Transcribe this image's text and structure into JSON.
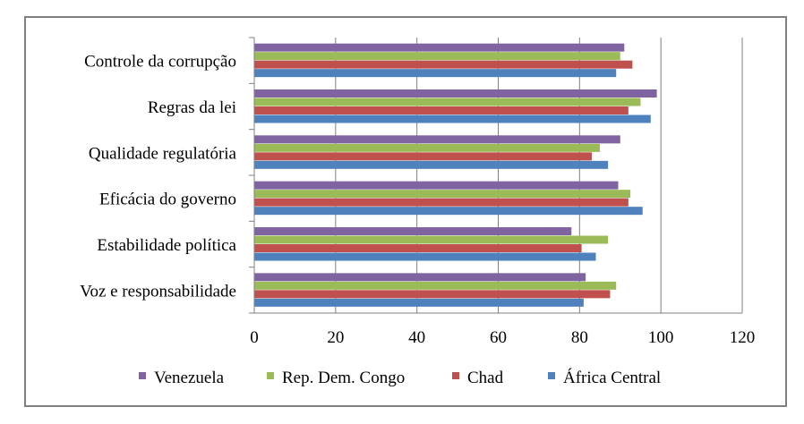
{
  "chart_data": {
    "type": "bar",
    "orientation": "horizontal",
    "categories": [
      "Voz e responsabilidade",
      "Estabilidade política",
      "Eficácia do governo",
      "Qualidade regulatória",
      "Regras da lei",
      "Controle da corrupção"
    ],
    "series": [
      {
        "name": "África Central",
        "color": "#4f81bd",
        "values": [
          81,
          84,
          95.5,
          87,
          97.5,
          89
        ]
      },
      {
        "name": "Chad",
        "color": "#c0504d",
        "values": [
          87.5,
          80.5,
          92,
          83,
          92,
          93
        ]
      },
      {
        "name": "Rep. Dem. Congo",
        "color": "#9bbb59",
        "values": [
          89,
          87,
          92.5,
          85,
          95,
          90
        ]
      },
      {
        "name": "Venezuela",
        "color": "#8064a2",
        "values": [
          81.5,
          78,
          89.5,
          90,
          99,
          91
        ]
      }
    ],
    "xlim": [
      0,
      120
    ],
    "xticks": [
      "0",
      "20",
      "40",
      "60",
      "80",
      "100",
      "120"
    ],
    "legend_order": [
      "Venezuela",
      "Rep. Dem. Congo",
      "Chad",
      "África Central"
    ],
    "legend_position": "bottom",
    "grid": "vertical major gridlines"
  }
}
